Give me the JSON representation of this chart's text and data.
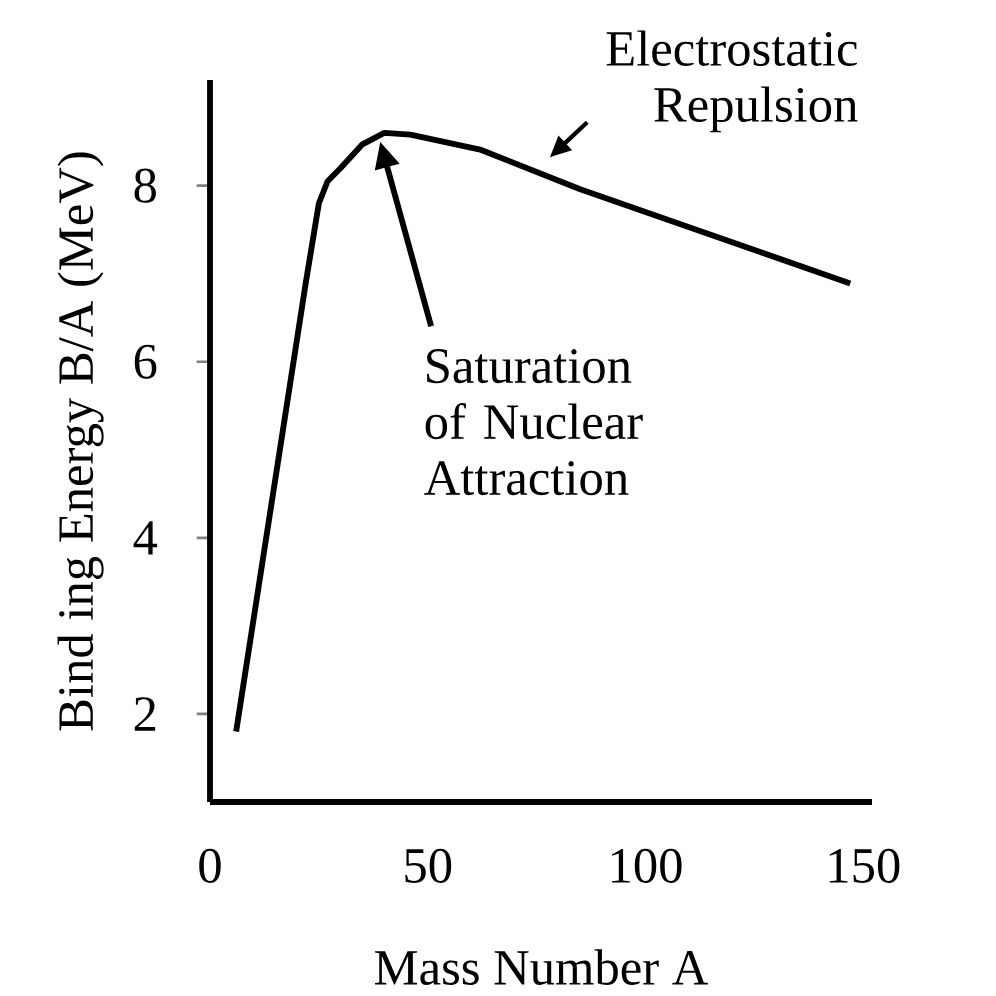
{
  "chart_data": {
    "type": "line",
    "xlabel": "Mass Number A",
    "ylabel": "Bind ing Energy B/A  (MeV)",
    "x": [
      6,
      22,
      25,
      27,
      30,
      35,
      40,
      46,
      62,
      85,
      147
    ],
    "values": [
      1.8,
      6.9,
      7.8,
      8.05,
      8.2,
      8.47,
      8.6,
      8.58,
      8.41,
      7.96,
      6.89
    ],
    "color": "#000000",
    "line_style": "solid",
    "marker": "none",
    "grid": false,
    "xlim": [
      0,
      152
    ],
    "ylim": [
      1,
      9.2
    ],
    "xticks": [
      0,
      50,
      100,
      150
    ],
    "yticks": [
      2,
      4,
      6,
      8
    ],
    "annotations": [
      "Saturation of Nuclear Attraction",
      {
        "text": "Electrostatic Repulsion",
        "x": 78,
        "y": 8.1
      }
    ]
  }
}
